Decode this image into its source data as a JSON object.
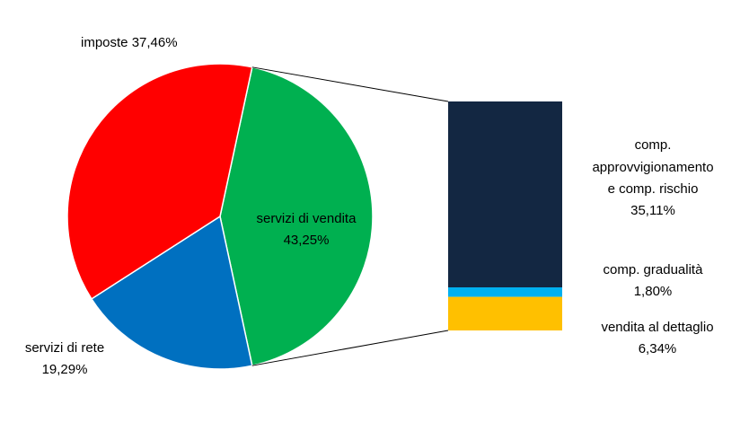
{
  "chart_data": {
    "type": "pie",
    "subtype": "bar-of-pie",
    "unit": "%",
    "pie": {
      "slices": [
        {
          "name": "servizi di vendita",
          "value": 43.25,
          "display": "43,25%",
          "color": "#00B050",
          "expanded": true
        },
        {
          "name": "servizi di rete",
          "value": 19.29,
          "display": "19,29%",
          "color": "#0070C0"
        },
        {
          "name": "imposte",
          "value": 37.46,
          "display": "37,46%",
          "color": "#FF0000"
        }
      ],
      "labels": {
        "vendita_line1": "servizi di vendita",
        "vendita_line2": "43,25%",
        "rete_line1": "servizi di rete",
        "rete_line2": "19,29%",
        "imposte": "imposte 37,46%"
      }
    },
    "bar": {
      "segments": [
        {
          "name": "comp. approvvigionamento e comp. rischio",
          "value": 35.11,
          "display": "35,11%",
          "color": "#132742"
        },
        {
          "name": "comp. gradualità",
          "value": 1.8,
          "display": "1,80%",
          "color": "#00B0F0"
        },
        {
          "name": "vendita al dettaglio",
          "value": 6.34,
          "display": "6,34%",
          "color": "#FFC000"
        }
      ],
      "labels": {
        "approv_1": "comp.",
        "approv_2": "approvvigionamento",
        "approv_3": "e comp. rischio",
        "approv_4": "35,11%",
        "grad_1": "comp. gradualità",
        "grad_2": "1,80%",
        "dett_1": "vendita al dettaglio",
        "dett_2": "6,34%"
      }
    },
    "connector_color": "#000000"
  }
}
